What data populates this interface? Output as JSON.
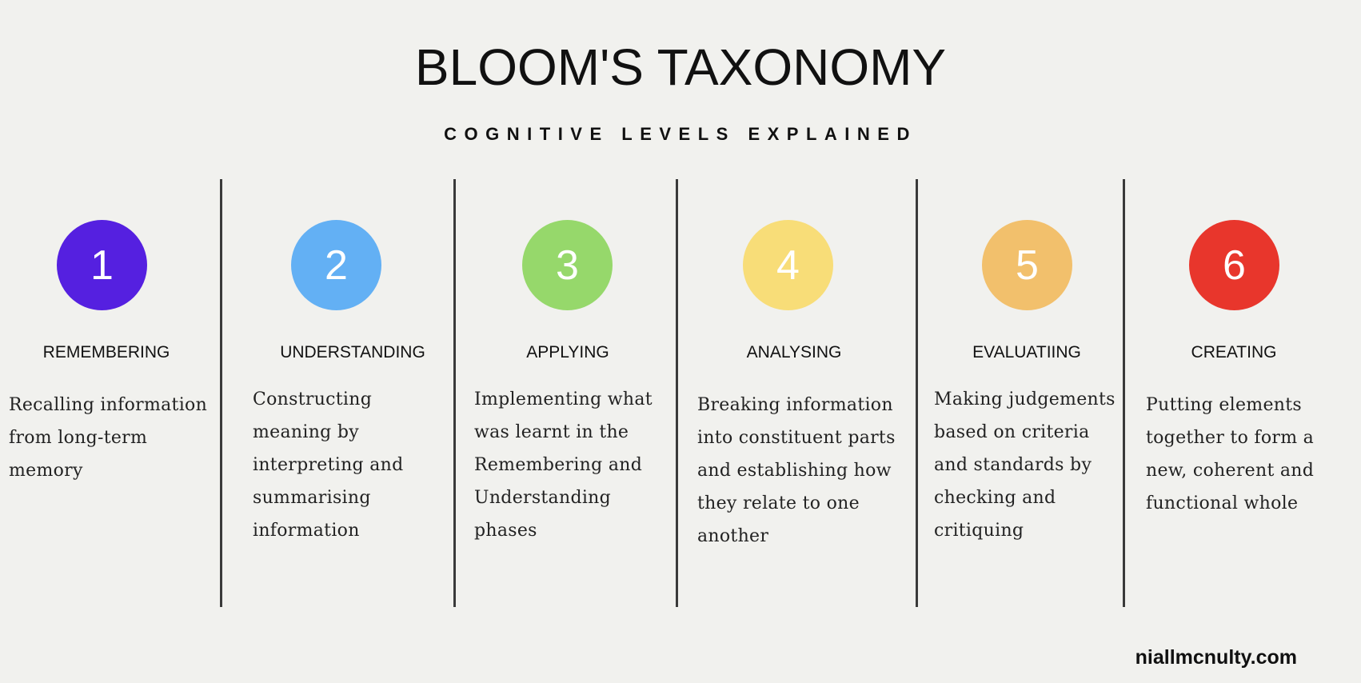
{
  "header": {
    "title": "BLOOM'S TAXONOMY",
    "subtitle": "COGNITIVE LEVELS EXPLAINED"
  },
  "levels": [
    {
      "number": "1",
      "name": "REMEMBERING",
      "description": "Recalling information from long-term memory",
      "color": "#5520e0"
    },
    {
      "number": "2",
      "name": "UNDERSTANDING",
      "description": "Constructing meaning by interpreting and summarising information",
      "color": "#63b0f4"
    },
    {
      "number": "3",
      "name": "APPLYING",
      "description": "Implementing what was learnt in the Remembering and Understanding phases",
      "color": "#96d86b"
    },
    {
      "number": "4",
      "name": "ANALYSING",
      "description": "Breaking information into constituent parts and establishing how they relate to one another",
      "color": "#f8dd78"
    },
    {
      "number": "5",
      "name": "EVALUATIING",
      "description": "Making judgements based on criteria and standards by checking and critiquing",
      "color": "#f2c06c"
    },
    {
      "number": "6",
      "name": "CREATING",
      "description": "Putting elements together to form a new, coherent and functional whole",
      "color": "#e8362c"
    }
  ],
  "footer": {
    "site": "niallmcnulty.com"
  }
}
